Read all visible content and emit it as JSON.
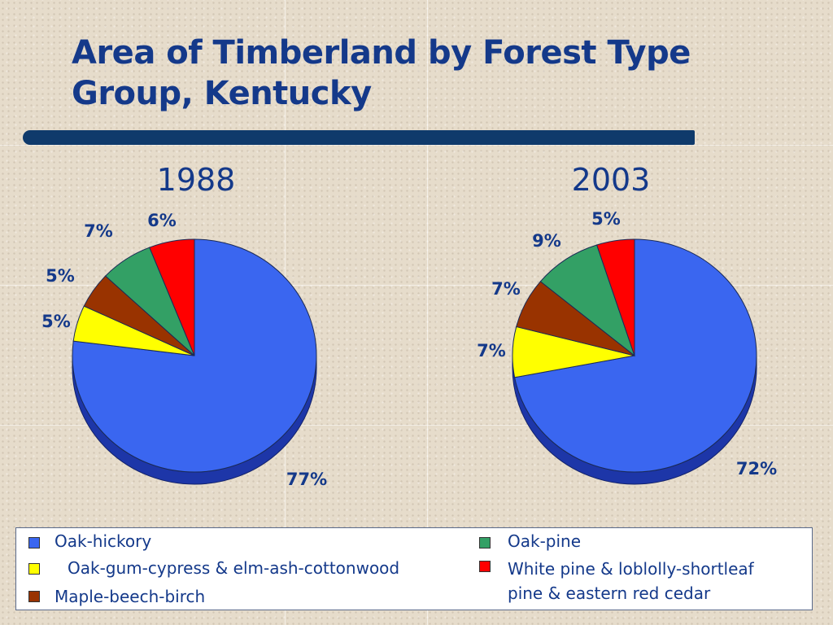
{
  "slide": {
    "title_line1": "Area of Timberland by Forest Type",
    "title_line2": "Group, Kentucky"
  },
  "colors": {
    "oak_hickory": "#3a66f0",
    "oak_hickory_edge": "#1d36a8",
    "oak_gum_cypress": "#ffff00",
    "maple_beech_birch": "#993300",
    "oak_pine": "#33a065",
    "white_pine": "#ff0000",
    "text": "#14398a",
    "title_bar": "#0f3a6b"
  },
  "chart_data": [
    {
      "type": "pie",
      "title": "1988",
      "categories": [
        "Oak-hickory",
        "Oak-gum-cypress & elm-ash-cottonwood",
        "Maple-beech-birch",
        "Oak-pine",
        "White pine & loblolly-shortleaf pine & eastern red cedar"
      ],
      "values": [
        77,
        5,
        5,
        7,
        6
      ],
      "labels": [
        "77%",
        "5%",
        "5%",
        "7%",
        "6%"
      ],
      "legend_placement": "bottom"
    },
    {
      "type": "pie",
      "title": "2003",
      "categories": [
        "Oak-hickory",
        "Oak-gum-cypress & elm-ash-cottonwood",
        "Maple-beech-birch",
        "Oak-pine",
        "White pine & loblolly-shortleaf pine & eastern red cedar"
      ],
      "values": [
        72,
        7,
        7,
        9,
        5
      ],
      "labels": [
        "72%",
        "7%",
        "7%",
        "9%",
        "5%"
      ],
      "legend_placement": "bottom"
    }
  ],
  "legend": {
    "items": [
      {
        "label": "Oak-hickory",
        "color_key": "oak_hickory"
      },
      {
        "label": "Oak-gum-cypress & elm-ash-cottonwood",
        "color_key": "oak_gum_cypress"
      },
      {
        "label": "Maple-beech-birch",
        "color_key": "maple_beech_birch"
      },
      {
        "label": "Oak-pine",
        "color_key": "oak_pine"
      },
      {
        "label": "White pine & loblolly-shortleaf",
        "label_line2": "pine & eastern red cedar",
        "color_key": "white_pine"
      }
    ]
  }
}
